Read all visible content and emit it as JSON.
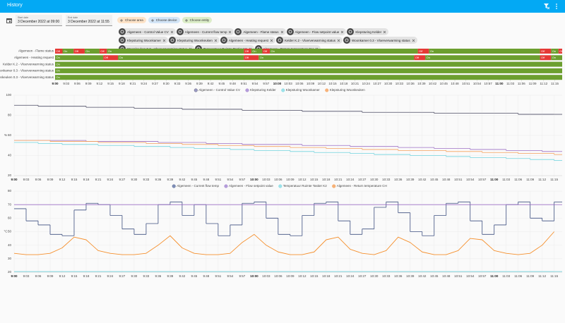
{
  "header": {
    "title": "History"
  },
  "date_range": {
    "start_label": "Start date",
    "start": "3 December 2022 at 09:00",
    "end_label": "End date",
    "end": "3 December 2022 at 11:55"
  },
  "targets": {
    "pickers": [
      {
        "label": "Choose area",
        "color": "#fde3c8"
      },
      {
        "label": "Choose device",
        "color": "#d3e5f7"
      },
      {
        "label": "Choose entity",
        "color": "#dcedc8"
      }
    ],
    "entities": [
      "Algemeen - Control Value CV",
      "Algemeen - Current flow temp",
      "Algemeen - Flame status",
      "Algemeen - Flow setpoint value",
      "Klepsturing Kelder",
      "Klepsturing Woonkamer",
      "Klepsturing Woonkeuken",
      "Algemeen - Heating request",
      "Kelder K.2 - Vloerverwarming status",
      "Woonkamer 0.3 - Vloerverwarming status",
      "Woonkeuken 0.3 - Vloerverwarming status",
      "Temperatuur Ruimte Tastier K2",
      "Algemeen - Return temperature CH"
    ]
  },
  "chart_data": [
    {
      "type": "timeline",
      "xlim": [
        "9:00",
        "11:17"
      ],
      "xticks": [
        "9:00",
        "9:03",
        "9:06",
        "9:09",
        "9:12",
        "9:15",
        "9:18",
        "9:21",
        "9:24",
        "9:27",
        "9:30",
        "9:33",
        "9:36",
        "9:39",
        "9:42",
        "9:45",
        "9:48",
        "9:51",
        "9:54",
        "9:57",
        "10:00",
        "10:03",
        "10:06",
        "10:09",
        "10:12",
        "10:15",
        "10:18",
        "10:21",
        "10:24",
        "10:27",
        "10:30",
        "10:33",
        "10:36",
        "10:39",
        "10:42",
        "10:45",
        "10:48",
        "10:51",
        "10:54",
        "10:57",
        "11:00",
        "11:03",
        "11:06",
        "11:09",
        "11:12",
        "11:15"
      ],
      "rows": [
        {
          "name": "Algemeen - Flame status",
          "segments": [
            {
              "state": "Off",
              "from": "9:00",
              "color": "#e53935"
            },
            {
              "state": "On",
              "from": "9:02",
              "color": "#6c9f2f"
            },
            {
              "state": "Off",
              "from": "9:05",
              "color": "#e53935"
            },
            {
              "state": "On",
              "from": "9:08",
              "color": "#6c9f2f"
            },
            {
              "state": "Off",
              "from": "9:12",
              "color": "#e53935"
            },
            {
              "state": "On",
              "from": "9:14",
              "color": "#6c9f2f"
            },
            {
              "state": "Off",
              "from": "9:51",
              "color": "#e53935"
            },
            {
              "state": "On",
              "from": "9:53",
              "color": "#6c9f2f"
            },
            {
              "state": "Off",
              "from": "9:56",
              "color": "#e53935"
            },
            {
              "state": "On",
              "from": "9:58",
              "color": "#6c9f2f"
            },
            {
              "state": "Off",
              "from": "10:38",
              "color": "#e53935"
            },
            {
              "state": "On",
              "from": "10:41",
              "color": "#6c9f2f"
            },
            {
              "state": "Off",
              "from": "11:11",
              "color": "#e53935"
            },
            {
              "state": "On",
              "from": "11:14",
              "color": "#6c9f2f"
            },
            {
              "state": "Off",
              "from": "11:16",
              "color": "#e53935"
            }
          ]
        },
        {
          "name": "Algemeen - Heating request",
          "segments": [
            {
              "state": "On",
              "from": "9:00",
              "color": "#6c9f2f"
            },
            {
              "state": "Off",
              "from": "9:13",
              "color": "#e53935"
            },
            {
              "state": "On",
              "from": "9:17",
              "color": "#6c9f2f"
            },
            {
              "state": "Off",
              "from": "9:51",
              "color": "#e53935"
            },
            {
              "state": "On",
              "from": "9:55",
              "color": "#6c9f2f"
            },
            {
              "state": "Off",
              "from": "10:37",
              "color": "#e53935"
            },
            {
              "state": "On",
              "from": "10:40",
              "color": "#6c9f2f"
            },
            {
              "state": "Off",
              "from": "11:11",
              "color": "#e53935"
            },
            {
              "state": "On",
              "from": "11:14",
              "color": "#6c9f2f"
            }
          ]
        },
        {
          "name": "Kelder K.2 - Vloerverwarming status",
          "segments": [
            {
              "state": "On",
              "from": "9:00",
              "color": "#6c9f2f"
            }
          ]
        },
        {
          "name": "Woonkamer 0.3 - Vloerverwarming status",
          "segments": [
            {
              "state": "On",
              "from": "9:00",
              "color": "#6c9f2f"
            }
          ]
        },
        {
          "name": "Woonkeuken 0.3 - Vloerverwarming status",
          "segments": [
            {
              "state": "On",
              "from": "9:00",
              "color": "#6c9f2f"
            }
          ]
        }
      ]
    },
    {
      "type": "line",
      "y_label": "%",
      "xlim": [
        "9:00",
        "11:17"
      ],
      "ylim": [
        20,
        100
      ],
      "yticks": [
        20,
        40,
        60,
        80,
        100
      ],
      "xticks": [
        "9:00",
        "9:03",
        "9:06",
        "9:09",
        "9:12",
        "9:15",
        "9:18",
        "9:21",
        "9:24",
        "9:27",
        "9:30",
        "9:33",
        "9:36",
        "9:39",
        "9:42",
        "9:45",
        "9:48",
        "9:51",
        "9:54",
        "9:57",
        "10:00",
        "10:03",
        "10:06",
        "10:09",
        "10:12",
        "10:15",
        "10:18",
        "10:21",
        "10:24",
        "10:27",
        "10:30",
        "10:33",
        "10:36",
        "10:39",
        "10:42",
        "10:45",
        "10:48",
        "10:51",
        "10:54",
        "10:57",
        "11:00",
        "11:03",
        "11:06",
        "11:09",
        "11:12",
        "11:15"
      ],
      "grid": true,
      "x": [
        "9:00",
        "9:03",
        "9:06",
        "9:09",
        "9:12",
        "9:15",
        "9:18",
        "9:21",
        "9:24",
        "9:27",
        "9:30",
        "9:33",
        "9:36",
        "9:39",
        "9:42",
        "9:45",
        "9:48",
        "9:51",
        "9:54",
        "9:57",
        "10:00",
        "10:03",
        "10:06",
        "10:09",
        "10:12",
        "10:15",
        "10:18",
        "10:21",
        "10:24",
        "10:27",
        "10:30",
        "10:33",
        "10:36",
        "10:39",
        "10:42",
        "10:45",
        "10:48",
        "10:51",
        "10:54",
        "10:57",
        "11:00",
        "11:03",
        "11:06",
        "11:09",
        "11:12",
        "11:15"
      ],
      "series": [
        {
          "name": "Algemeen - Control Value CV",
          "color": "#4b4b63",
          "legend_color": "#9a9ac4",
          "step": true,
          "values": [
            90,
            90,
            89,
            89,
            89,
            89,
            88,
            88,
            88,
            88,
            87,
            87,
            87,
            87,
            86,
            86,
            86,
            86,
            86,
            85,
            85,
            85,
            85,
            85,
            84,
            84,
            84,
            84,
            84,
            83,
            83,
            83,
            83,
            83,
            83,
            82,
            82,
            82,
            82,
            82,
            82,
            82,
            81,
            81,
            81,
            81
          ]
        },
        {
          "name": "Klepsturing Kelder",
          "color": "#9c6ec5",
          "legend_color": "#b39ddb",
          "step": true,
          "values": [
            55,
            55,
            55,
            55,
            55,
            55,
            54,
            54,
            54,
            54,
            54,
            54,
            53,
            53,
            53,
            53,
            52,
            52,
            52,
            51,
            51,
            51,
            51,
            51,
            50,
            50,
            50,
            50,
            49,
            49,
            49,
            49,
            48,
            48,
            48,
            47,
            47,
            47,
            46,
            46,
            46,
            45,
            45,
            45,
            44,
            44
          ]
        },
        {
          "name": "Klepsturing Woonkamer",
          "color": "#6fd3de",
          "legend_color": "#9ee3ea",
          "step": true,
          "values": [
            53,
            53,
            52,
            52,
            51,
            51,
            51,
            50,
            50,
            50,
            49,
            49,
            49,
            48,
            48,
            47,
            47,
            47,
            46,
            46,
            45,
            45,
            45,
            44,
            44,
            43,
            43,
            43,
            42,
            42,
            41,
            41,
            41,
            40,
            40,
            40,
            39,
            39,
            38,
            38,
            38,
            37,
            37,
            36,
            36,
            35
          ]
        },
        {
          "name": "Klepsturing Woonkeuken",
          "color": "#f5a05a",
          "legend_color": "#f7b27a",
          "step": true,
          "values": [
            55,
            55,
            55,
            54,
            54,
            54,
            54,
            53,
            53,
            53,
            53,
            52,
            52,
            52,
            51,
            51,
            51,
            50,
            50,
            50,
            49,
            49,
            49,
            48,
            48,
            48,
            47,
            47,
            47,
            46,
            46,
            46,
            45,
            45,
            45,
            45,
            44,
            44,
            44,
            43,
            43,
            43,
            42,
            42,
            42,
            41
          ]
        }
      ]
    },
    {
      "type": "line",
      "y_label": "°C",
      "xlim": [
        "9:00",
        "11:17"
      ],
      "ylim": [
        20,
        80
      ],
      "yticks": [
        20,
        30,
        40,
        50,
        60,
        70,
        80
      ],
      "xticks": [
        "9:00",
        "9:03",
        "9:06",
        "9:09",
        "9:12",
        "9:15",
        "9:18",
        "9:21",
        "9:24",
        "9:27",
        "9:30",
        "9:33",
        "9:36",
        "9:39",
        "9:42",
        "9:45",
        "9:48",
        "9:51",
        "9:54",
        "9:57",
        "10:00",
        "10:03",
        "10:06",
        "10:09",
        "10:12",
        "10:15",
        "10:18",
        "10:21",
        "10:24",
        "10:27",
        "10:30",
        "10:33",
        "10:36",
        "10:39",
        "10:42",
        "10:45",
        "10:48",
        "10:51",
        "10:54",
        "10:57",
        "11:00",
        "11:03",
        "11:06",
        "11:09",
        "11:12",
        "11:15"
      ],
      "grid": true,
      "x": [
        "9:00",
        "9:03",
        "9:06",
        "9:09",
        "9:12",
        "9:15",
        "9:18",
        "9:21",
        "9:24",
        "9:27",
        "9:30",
        "9:33",
        "9:36",
        "9:39",
        "9:42",
        "9:45",
        "9:48",
        "9:51",
        "9:54",
        "9:57",
        "10:00",
        "10:03",
        "10:06",
        "10:09",
        "10:12",
        "10:15",
        "10:18",
        "10:21",
        "10:24",
        "10:27",
        "10:30",
        "10:33",
        "10:36",
        "10:39",
        "10:42",
        "10:45",
        "10:48",
        "10:51",
        "10:54",
        "10:57",
        "11:00",
        "11:03",
        "11:06",
        "11:09",
        "11:12",
        "11:15"
      ],
      "series": [
        {
          "name": "Algemeen - Current flow temp",
          "color": "#3d4f80",
          "legend_color": "#7f8fb8",
          "step": true,
          "values": [
            67,
            58,
            55,
            48,
            47,
            66,
            71,
            70,
            62,
            52,
            48,
            56,
            70,
            72,
            62,
            70,
            56,
            47,
            55,
            71,
            72,
            60,
            48,
            47,
            62,
            71,
            72,
            58,
            48,
            52,
            68,
            72,
            64,
            50,
            47,
            62,
            71,
            72,
            58,
            48,
            55,
            70,
            72,
            60,
            58,
            72
          ]
        },
        {
          "name": "Algemeen - Flow setpoint value",
          "color": "#9c6ec5",
          "legend_color": "#b39ddb",
          "step": true,
          "values": [
            70,
            70,
            70,
            70,
            70,
            70,
            70,
            70,
            70,
            70,
            70,
            70,
            70,
            70,
            70,
            70,
            70,
            70,
            70,
            70,
            70,
            70,
            70,
            70,
            70,
            70,
            70,
            70,
            70,
            70,
            70,
            70,
            70,
            70,
            70,
            70,
            70,
            70,
            70,
            70,
            70,
            70,
            70,
            70,
            70,
            70
          ]
        },
        {
          "name": "Temperatuur Ruimte Tastier K2",
          "color": "#6fd3de",
          "legend_color": "#9ee3ea",
          "step": true,
          "values": [
            20.5,
            20.5,
            20.5,
            20.5,
            20.5,
            20.5,
            20.5,
            20.5,
            20.5,
            20.5,
            20.5,
            20.5,
            20.5,
            20.5,
            20.5,
            20.5,
            20.5,
            20.5,
            20.5,
            20.5,
            20.5,
            20.5,
            20.5,
            20.5,
            20.5,
            20.5,
            20.5,
            20.5,
            20.5,
            20.5,
            20.5,
            20.5,
            20.5,
            20.5,
            20.5,
            20.5,
            20.5,
            20.5,
            20.5,
            20.5,
            20.5,
            20.5,
            20.5,
            20.5,
            20.5,
            20.5
          ]
        },
        {
          "name": "Algemeen - Return temperature CH",
          "color": "#f5902e",
          "legend_color": "#f7b27a",
          "step": false,
          "values": [
            34,
            33,
            33,
            34,
            38,
            46,
            44,
            36,
            34,
            33,
            33,
            34,
            40,
            47,
            38,
            34,
            33,
            33,
            34,
            42,
            48,
            40,
            35,
            33,
            33,
            35,
            44,
            46,
            37,
            34,
            33,
            36,
            46,
            42,
            35,
            33,
            33,
            36,
            45,
            44,
            36,
            34,
            33,
            34,
            40,
            50
          ]
        }
      ]
    }
  ]
}
